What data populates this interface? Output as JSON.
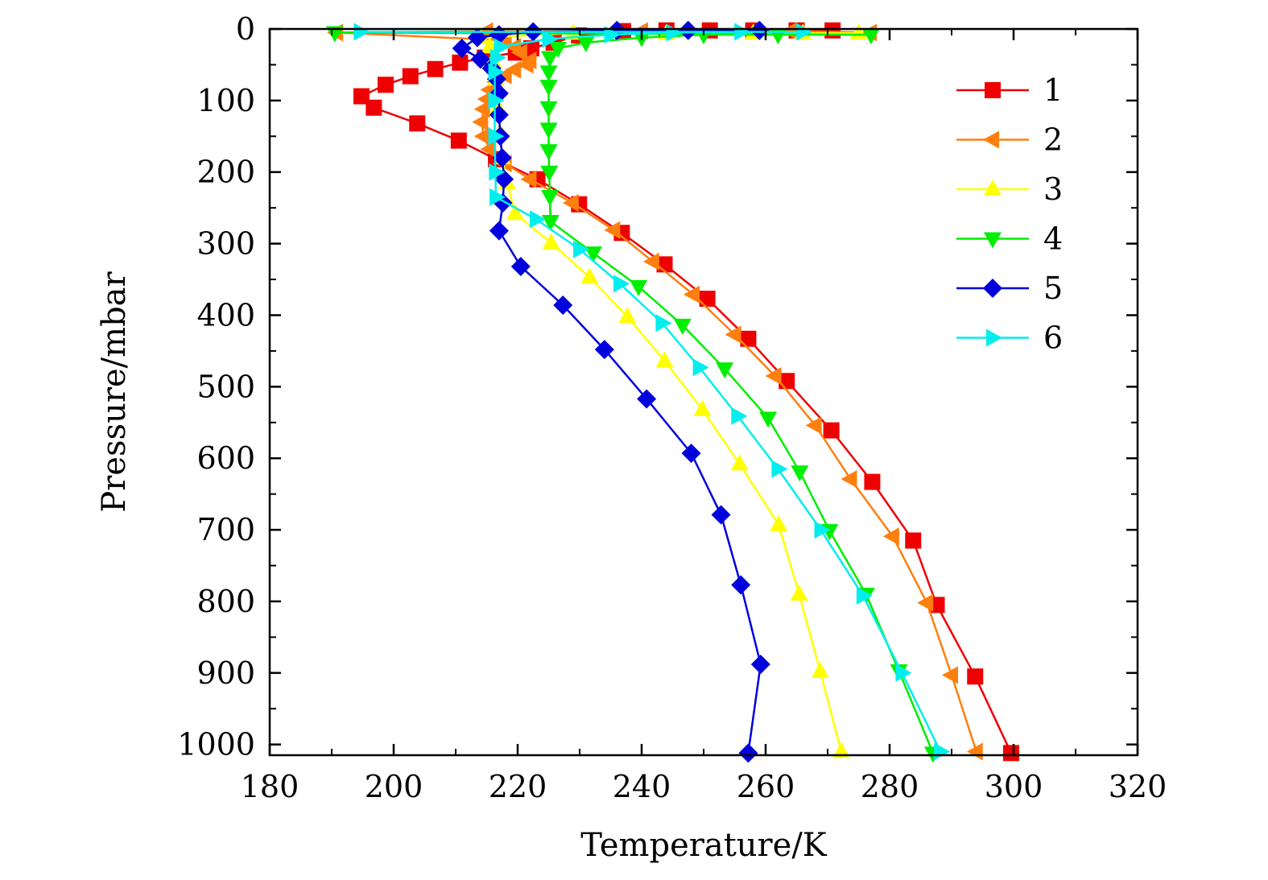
{
  "chart_data": {
    "type": "line",
    "title": "",
    "xlabel": "Temperature/K",
    "ylabel": "Pressure/mbar",
    "xlim": [
      180,
      320
    ],
    "ylim": [
      1015,
      0
    ],
    "x_ticks": [
      180,
      200,
      220,
      240,
      260,
      280,
      300,
      320
    ],
    "y_ticks": [
      0,
      100,
      200,
      300,
      400,
      500,
      600,
      700,
      800,
      900,
      1000
    ],
    "legend_position": "top-right",
    "grid": false,
    "series": [
      {
        "name": "1",
        "color": "#ee0000",
        "marker": "square",
        "points": [
          [
            299.6,
            1012
          ],
          [
            293.8,
            905
          ],
          [
            287.6,
            805
          ],
          [
            283.8,
            715
          ],
          [
            277.2,
            633
          ],
          [
            270.6,
            561
          ],
          [
            263.4,
            492
          ],
          [
            257.2,
            433
          ],
          [
            250.6,
            377
          ],
          [
            243.7,
            329
          ],
          [
            236.8,
            285
          ],
          [
            229.9,
            245
          ],
          [
            223.2,
            210
          ],
          [
            216.5,
            182
          ],
          [
            210.5,
            156
          ],
          [
            203.8,
            132
          ],
          [
            196.8,
            110
          ],
          [
            194.8,
            94
          ],
          [
            198.7,
            78
          ],
          [
            202.7,
            66
          ],
          [
            206.7,
            56
          ],
          [
            210.7,
            47
          ],
          [
            214.7,
            40
          ],
          [
            219.7,
            33
          ],
          [
            222.2,
            27
          ],
          [
            225.8,
            19
          ],
          [
            229.9,
            9
          ],
          [
            237,
            3
          ],
          [
            244,
            2
          ],
          [
            251,
            2
          ],
          [
            258,
            2
          ],
          [
            265,
            2
          ],
          [
            270.8,
            2
          ]
        ]
      },
      {
        "name": "2",
        "color": "#ff7f0e",
        "marker": "triangle-left",
        "points": [
          [
            294.0,
            1010
          ],
          [
            290.0,
            903
          ],
          [
            286.0,
            802
          ],
          [
            280.5,
            709
          ],
          [
            273.7,
            629
          ],
          [
            268.0,
            554
          ],
          [
            261.5,
            485
          ],
          [
            255.0,
            427
          ],
          [
            248.3,
            371
          ],
          [
            241.8,
            325
          ],
          [
            235.5,
            281
          ],
          [
            228.8,
            243
          ],
          [
            222.0,
            210
          ],
          [
            218.0,
            188
          ],
          [
            215.5,
            168
          ],
          [
            214.5,
            150
          ],
          [
            214.2,
            130
          ],
          [
            214.5,
            112
          ],
          [
            215.0,
            98
          ],
          [
            215.5,
            85
          ],
          [
            216.5,
            74
          ],
          [
            218.0,
            65
          ],
          [
            219.5,
            57
          ],
          [
            221.5,
            50
          ],
          [
            222.0,
            44
          ],
          [
            220.5,
            33
          ],
          [
            219.5,
            25
          ],
          [
            218.0,
            16
          ],
          [
            190.8,
            5
          ],
          [
            215,
            3
          ],
          [
            240,
            3
          ],
          [
            264,
            3
          ],
          [
            276.9,
            5
          ]
        ]
      },
      {
        "name": "3",
        "color": "#ffff00",
        "marker": "triangle-up",
        "points": [
          [
            272.2,
            1010
          ],
          [
            268.8,
            898
          ],
          [
            265.4,
            790
          ],
          [
            262.1,
            693
          ],
          [
            255.8,
            608
          ],
          [
            249.8,
            532
          ],
          [
            243.7,
            464
          ],
          [
            237.7,
            402
          ],
          [
            231.6,
            347
          ],
          [
            225.4,
            299
          ],
          [
            219.6,
            258
          ],
          [
            218.3,
            215
          ],
          [
            217.5,
            180
          ],
          [
            217.2,
            145
          ],
          [
            216.8,
            110
          ],
          [
            216.5,
            70
          ],
          [
            216.0,
            45
          ],
          [
            215.5,
            25
          ],
          [
            214.0,
            12
          ],
          [
            229,
            6
          ],
          [
            244,
            6
          ],
          [
            258,
            6
          ],
          [
            266,
            6
          ],
          [
            275.0,
            6
          ]
        ]
      },
      {
        "name": "4",
        "color": "#00ee00",
        "marker": "triangle-down",
        "points": [
          [
            287.0,
            1012
          ],
          [
            281.5,
            897
          ],
          [
            276.2,
            790
          ],
          [
            270.3,
            701
          ],
          [
            265.5,
            619
          ],
          [
            260.4,
            544
          ],
          [
            253.4,
            475
          ],
          [
            246.6,
            414
          ],
          [
            239.5,
            360
          ],
          [
            232.2,
            313
          ],
          [
            225.3,
            269
          ],
          [
            225.2,
            234
          ],
          [
            225.1,
            200
          ],
          [
            225.0,
            170
          ],
          [
            225.0,
            140
          ],
          [
            225.0,
            110
          ],
          [
            225.0,
            80
          ],
          [
            225.0,
            60
          ],
          [
            225.2,
            40
          ],
          [
            226.5,
            27
          ],
          [
            231.0,
            19
          ],
          [
            240.0,
            12
          ],
          [
            250.0,
            8
          ],
          [
            262.0,
            8
          ],
          [
            277.0,
            8
          ],
          [
            190.5,
            5
          ]
        ]
      },
      {
        "name": "5",
        "color": "#0000dd",
        "marker": "diamond",
        "points": [
          [
            257.2,
            1012
          ],
          [
            259.2,
            888
          ],
          [
            256.0,
            777
          ],
          [
            252.8,
            679
          ],
          [
            248.0,
            593
          ],
          [
            240.8,
            517
          ],
          [
            234.0,
            448
          ],
          [
            227.3,
            386
          ],
          [
            220.5,
            332
          ],
          [
            217.0,
            282
          ],
          [
            217.6,
            243
          ],
          [
            217.8,
            210
          ],
          [
            217.5,
            180
          ],
          [
            217.2,
            150
          ],
          [
            217.0,
            120
          ],
          [
            217.0,
            90
          ],
          [
            216.6,
            70
          ],
          [
            215.8,
            55
          ],
          [
            214.0,
            42
          ],
          [
            211.0,
            27
          ],
          [
            213.5,
            12
          ],
          [
            217.0,
            8
          ],
          [
            222.5,
            4
          ],
          [
            236.0,
            2
          ],
          [
            247.5,
            2
          ],
          [
            259.0,
            2
          ]
        ]
      },
      {
        "name": "6",
        "color": "#00eeee",
        "marker": "triangle-right",
        "points": [
          [
            288.2,
            1010
          ],
          [
            282.0,
            900
          ],
          [
            275.7,
            792
          ],
          [
            268.9,
            700
          ],
          [
            262.0,
            615
          ],
          [
            255.5,
            541
          ],
          [
            249.3,
            473
          ],
          [
            243.3,
            411
          ],
          [
            236.5,
            356
          ],
          [
            230.0,
            308
          ],
          [
            223.0,
            266
          ],
          [
            216.5,
            235
          ],
          [
            216.4,
            200
          ],
          [
            216.3,
            150
          ],
          [
            216.3,
            100
          ],
          [
            216.3,
            60
          ],
          [
            216.6,
            40
          ],
          [
            217.2,
            25
          ],
          [
            225.0,
            14
          ],
          [
            235.0,
            8
          ],
          [
            245.0,
            5
          ],
          [
            256.0,
            4
          ],
          [
            266.0,
            4
          ],
          [
            194.6,
            4
          ]
        ]
      }
    ]
  }
}
